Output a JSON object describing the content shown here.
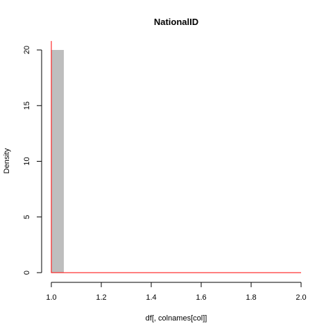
{
  "chart_data": {
    "type": "bar",
    "title": "NationalID",
    "xlabel": "df[, colnames[col]]",
    "ylabel": "Density",
    "xlim": [
      1.0,
      2.0
    ],
    "ylim": [
      0,
      20
    ],
    "x_ticks": [
      "1.0",
      "1.2",
      "1.4",
      "1.6",
      "1.8",
      "2.0"
    ],
    "y_ticks": [
      "0",
      "5",
      "10",
      "15",
      "20"
    ],
    "histogram": {
      "bins": [
        {
          "x_start": 1.0,
          "x_end": 1.05,
          "density": 20
        }
      ],
      "fill": "#bebebe"
    },
    "density_curve": {
      "color": "#ff0000",
      "points": [
        {
          "x": 1.0,
          "y": 20.8
        },
        {
          "x": 1.0,
          "y": 0
        },
        {
          "x": 2.0,
          "y": 0
        }
      ]
    },
    "grid": false,
    "legend": "none"
  }
}
